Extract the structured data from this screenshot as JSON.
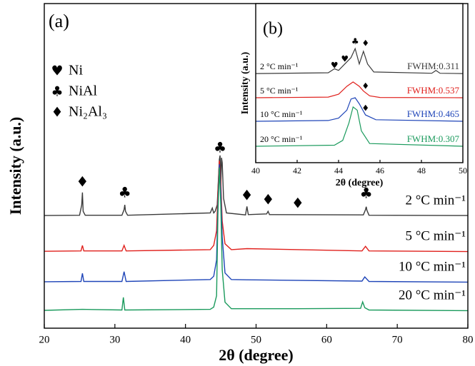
{
  "chart_data": [
    {
      "type": "line",
      "title": "(a)",
      "xlabel": "2θ (degree)",
      "ylabel": "Intensity (a.u.)",
      "xlim": [
        20,
        80
      ],
      "xticks": [
        20,
        30,
        40,
        50,
        60,
        70,
        80
      ],
      "ylim": [
        0,
        100
      ],
      "legend": [
        {
          "symbol": "♥",
          "label": "Ni"
        },
        {
          "symbol": "♣",
          "label": "NiAl"
        },
        {
          "symbol": "♦",
          "label": "Ni₂Al₃"
        }
      ],
      "series": [
        {
          "name": "2 °C min⁻¹",
          "color": "#3a3a3a",
          "x": [
            20,
            25.0,
            25.3,
            25.4,
            25.5,
            25.8,
            31.0,
            31.3,
            31.4,
            31.5,
            31.8,
            43.5,
            43.8,
            44.0,
            44.2,
            44.5,
            44.8,
            44.9,
            45.0,
            45.1,
            45.2,
            45.4,
            45.8,
            48.5,
            48.7,
            48.9,
            51.5,
            51.7,
            51.9,
            65.2,
            65.5,
            65.6,
            65.7,
            66.0,
            80
          ],
          "values": [
            34.7,
            34.8,
            38,
            41.8,
            36,
            34.8,
            34.8,
            36.5,
            38,
            36,
            34.8,
            35.5,
            37,
            35.5,
            36,
            38,
            52,
            53.2,
            44,
            52.5,
            51,
            40,
            35.5,
            34.9,
            37.5,
            35,
            35.2,
            36,
            35,
            34.9,
            36.5,
            37.4,
            36.3,
            34.8,
            34.7
          ]
        },
        {
          "name": "5 °C min⁻¹",
          "color": "#e0201c",
          "x": [
            20,
            25.2,
            25.4,
            25.6,
            31.0,
            31.3,
            31.6,
            43.5,
            44.0,
            44.4,
            44.6,
            44.8,
            45.0,
            45.2,
            45.6,
            46.5,
            48.7,
            65.0,
            65.5,
            66.0,
            80
          ],
          "values": [
            23.7,
            23.8,
            25.5,
            23.8,
            23.8,
            25.5,
            23.8,
            24.2,
            25.5,
            30,
            42,
            51.6,
            45,
            33,
            26,
            24.2,
            24.5,
            23.8,
            25.2,
            23.8,
            23.6
          ]
        },
        {
          "name": "10 °C min⁻¹",
          "color": "#1f45b8",
          "x": [
            20,
            25.2,
            25.4,
            25.6,
            31.0,
            31.3,
            31.6,
            43.5,
            44.0,
            44.4,
            44.6,
            44.8,
            45.0,
            45.2,
            45.6,
            46.5,
            48.7,
            65.0,
            65.4,
            66.0,
            80
          ],
          "values": [
            14.3,
            14.4,
            16.9,
            14.4,
            14.4,
            17.4,
            14.4,
            15,
            16,
            21,
            38,
            50.5,
            42,
            28,
            17,
            15,
            14.9,
            14.5,
            15.8,
            14.4,
            14.2
          ]
        },
        {
          "name": "20 °C min⁻¹",
          "color": "#1a9a5c",
          "x": [
            20,
            25.4,
            31.0,
            31.2,
            31.4,
            43.5,
            44.0,
            44.4,
            44.6,
            44.8,
            45.0,
            45.2,
            45.6,
            46.5,
            55.7,
            64.8,
            65.1,
            65.4,
            66.0,
            80
          ],
          "values": [
            5.5,
            5.8,
            5.6,
            9.5,
            5.6,
            5.8,
            6.5,
            10,
            35,
            49.5,
            38,
            18,
            8,
            6,
            6,
            6.1,
            8.1,
            6.3,
            5.6,
            5.4
          ]
        }
      ],
      "annotations": [
        {
          "text": "♦",
          "x": 25.4,
          "y": 44.8
        },
        {
          "text": "♣",
          "x": 31.4,
          "y": 41.5
        },
        {
          "text": "♣",
          "x": 44.9,
          "y": 55.4
        },
        {
          "text": "♦",
          "x": 48.7,
          "y": 40.7
        },
        {
          "text": "♦",
          "x": 51.7,
          "y": 39.3
        },
        {
          "text": "♦",
          "x": 55.9,
          "y": 38.2
        },
        {
          "text": "♣",
          "x": 65.6,
          "y": 41.3
        }
      ]
    },
    {
      "type": "line",
      "title": "(b)",
      "xlabel": "2θ (degree)",
      "ylabel": "Intensity (a.u.)",
      "xlim": [
        40,
        50
      ],
      "xticks": [
        40,
        42,
        44,
        46,
        48,
        50
      ],
      "ylim": [
        0,
        100
      ],
      "series": [
        {
          "name": "2 °C min⁻¹",
          "color": "#3a3a3a",
          "label": "FWHM:0.311",
          "x": [
            40,
            43.5,
            43.8,
            44.0,
            44.3,
            44.6,
            44.8,
            45.0,
            45.2,
            45.4,
            45.7,
            48.5,
            48.7,
            48.9,
            50
          ],
          "values": [
            56,
            56.5,
            59,
            58,
            62,
            66,
            71.7,
            62,
            70,
            62,
            57,
            56.2,
            58,
            56.2,
            56
          ]
        },
        {
          "name": "5 °C min⁻¹",
          "color": "#e0201c",
          "label": "FWHM:0.537",
          "x": [
            40,
            43.5,
            44.0,
            44.4,
            44.7,
            45.0,
            45.2,
            45.5,
            46,
            50
          ],
          "values": [
            40.8,
            41.2,
            43,
            48,
            50.7,
            48,
            45,
            42,
            41,
            40.8
          ]
        },
        {
          "name": "10 °C min⁻¹",
          "color": "#1f45b8",
          "label": "FWHM:0.465",
          "x": [
            40,
            43.5,
            44.0,
            44.4,
            44.6,
            44.8,
            45.0,
            45.3,
            45.8,
            50
          ],
          "values": [
            26,
            26.5,
            28,
            33,
            40,
            40.8,
            37,
            30,
            27,
            26
          ]
        },
        {
          "name": "20 °C min⁻¹",
          "color": "#1a9a5c",
          "label": "FWHM:0.307",
          "x": [
            40,
            43.8,
            44.2,
            44.5,
            44.7,
            44.9,
            45.1,
            45.5,
            50
          ],
          "values": [
            10.3,
            11,
            14,
            25,
            35,
            33,
            20,
            12,
            10.3
          ]
        }
      ],
      "annotations": [
        {
          "text": "♥",
          "x": 43.8,
          "y": 61
        },
        {
          "text": "♥",
          "x": 44.3,
          "y": 65
        },
        {
          "text": "♣",
          "x": 44.8,
          "y": 76
        },
        {
          "text": "♦",
          "x": 45.3,
          "y": 75
        },
        {
          "text": "♦",
          "x": 45.3,
          "y": 48
        },
        {
          "text": "♦",
          "x": 45.3,
          "y": 34
        }
      ]
    }
  ]
}
